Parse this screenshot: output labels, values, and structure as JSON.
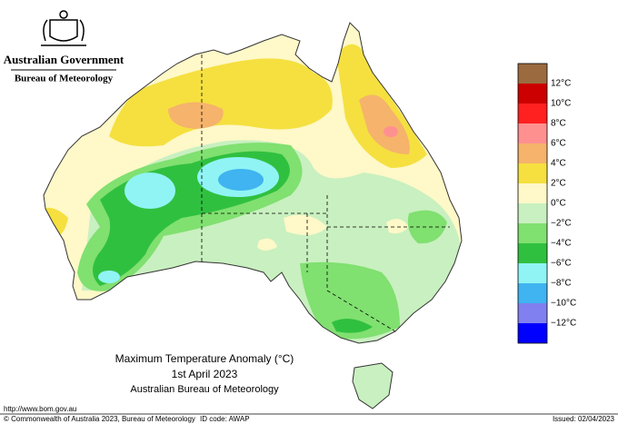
{
  "header": {
    "government": "Australian Government",
    "bureau": "Bureau of Meteorology"
  },
  "map_title": {
    "line1": "Maximum Temperature Anomaly (°C)",
    "line2": "1st April 2023",
    "line3": "Australian Bureau of Meteorology"
  },
  "legend": {
    "colors": [
      "#9b6b3f",
      "#cc0000",
      "#ff2020",
      "#ff9090",
      "#f5b36b",
      "#f5e040",
      "#fff8c8",
      "#c9f0c0",
      "#80e070",
      "#30c040",
      "#90f4f4",
      "#40b4f0",
      "#8080f0",
      "#0000ff"
    ],
    "labels": [
      "12°C",
      "10°C",
      "8°C",
      "6°C",
      "4°C",
      "2°C",
      "0°C",
      "−2°C",
      "−4°C",
      "−6°C",
      "−8°C",
      "−10°C",
      "−12°C"
    ]
  },
  "footer": {
    "url": "http://www.bom.gov.au",
    "copyright": "© Commonwealth of Australia 2023, Bureau of Meteorology",
    "id_code": "ID code: AWAP",
    "issued": "Issued: 02/04/2023"
  }
}
